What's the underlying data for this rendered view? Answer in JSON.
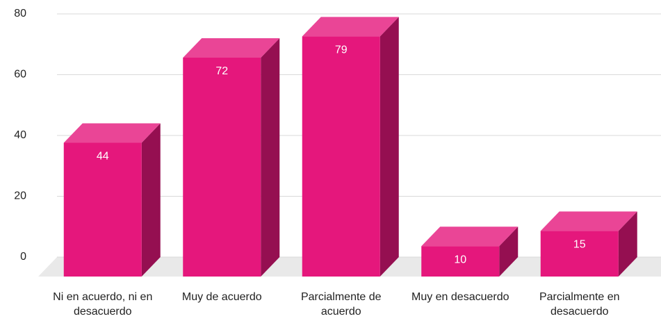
{
  "chart_data": {
    "type": "bar3d",
    "categories": [
      "Ni en acuerdo, ni en desacuerdo",
      "Muy de acuerdo",
      "Parcialmente de acuerdo",
      "Muy en desacuerdo",
      "Parcialmente en desacuerdo"
    ],
    "values": [
      44,
      72,
      79,
      10,
      15
    ],
    "color": "#e5177c",
    "ylim": [
      0,
      80
    ],
    "yticks": [
      0,
      20,
      40,
      60,
      80
    ],
    "grid": true
  }
}
